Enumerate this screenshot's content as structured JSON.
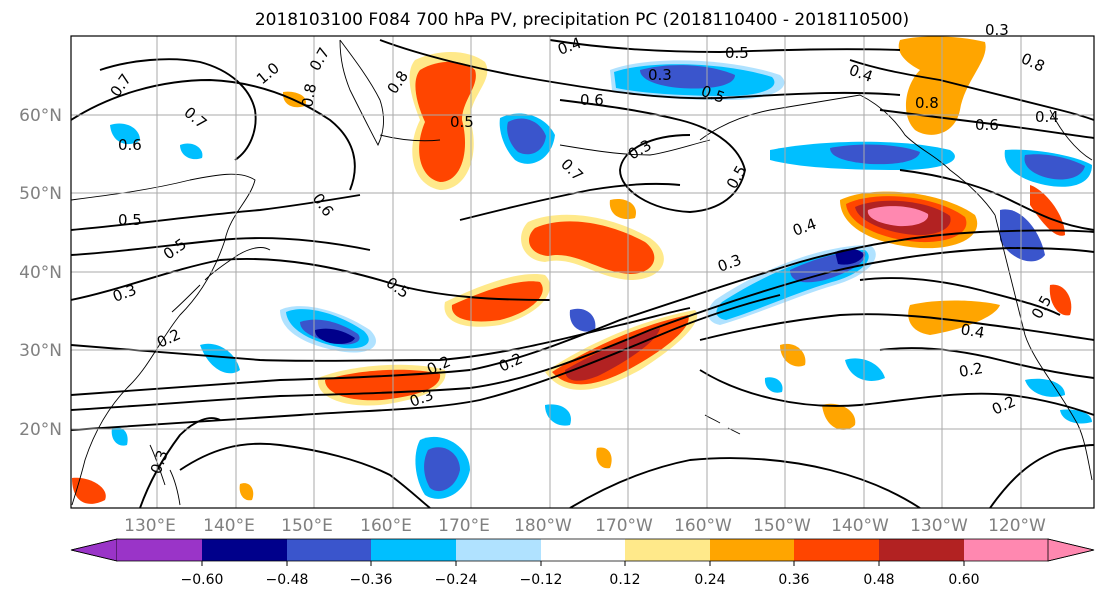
{
  "title": "2018103100 F084 700 hPa PV, precipitation PC (2018110400 - 2018110500)",
  "map": {
    "lon_labels": [
      "130°E",
      "140°E",
      "150°E",
      "160°E",
      "170°E",
      "180°W",
      "170°W",
      "160°W",
      "150°W",
      "140°W",
      "130°W",
      "120°W"
    ],
    "lat_labels": [
      "60°N",
      "50°N",
      "40°N",
      "30°N",
      "20°N"
    ],
    "contour_labels": [
      "0.4",
      "0.5",
      "0.4",
      "0.3",
      "0.8",
      "0.3",
      "0.5",
      "0.7",
      "1.0",
      "0.8",
      "0.8",
      "0.5",
      "0.6",
      "0.7",
      "0.7",
      "0.8",
      "0.6",
      "0.6",
      "0.7",
      "0.3",
      "0.5",
      "0.6",
      "0.4",
      "0.5",
      "0.5",
      "0.4",
      "0.3",
      "0.5",
      "0.3",
      "0.2",
      "0.2",
      "0.2",
      "0.3",
      "0.4",
      "0.5",
      "0.2",
      "0.2",
      "0.3"
    ]
  },
  "colorbar": {
    "tick_labels": [
      "−0.60",
      "−0.48",
      "−0.36",
      "−0.24",
      "−0.12",
      "0.12",
      "0.24",
      "0.36",
      "0.48",
      "0.60"
    ],
    "colors": [
      "#9a34c8",
      "#00008b",
      "#3a55cc",
      "#00bfff",
      "#b0e2ff",
      "#ffffff",
      "#ffe98a",
      "#ffa500",
      "#ff4500",
      "#b22222",
      "#ff88b0"
    ]
  },
  "colors": {
    "grid": "#aaaaaa",
    "contour": "#000000",
    "axis_label": "#808080"
  }
}
